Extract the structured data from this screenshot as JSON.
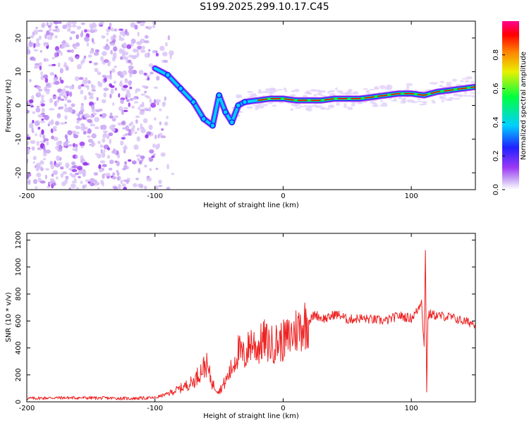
{
  "title": "S199.2025.299.10.17.C45",
  "chart_data": [
    {
      "type": "heatmap",
      "xlabel": "Height of straight line (km)",
      "ylabel": "Frequency (Hz)",
      "xlim": [
        -200,
        150
      ],
      "ylim": [
        -25,
        25
      ],
      "x_ticks": [
        -200,
        -100,
        0,
        100
      ],
      "x_tick_labels": [
        "-200",
        "-100",
        "0",
        "100"
      ],
      "y_ticks": [
        -20,
        -10,
        0,
        10,
        20
      ],
      "y_tick_labels": [
        "-20",
        "-10",
        "0",
        "10",
        "20"
      ],
      "ridge": {
        "x": [
          -100,
          -90,
          -80,
          -70,
          -62,
          -55,
          -50,
          -45,
          -40,
          -35,
          -30,
          -20,
          -10,
          0,
          10,
          20,
          30,
          40,
          50,
          60,
          70,
          80,
          90,
          100,
          110,
          120,
          130,
          140,
          150
        ],
        "y": [
          11,
          9,
          5,
          1,
          -4,
          -6,
          3,
          -2,
          -5,
          0,
          1,
          1.5,
          2,
          2,
          1.5,
          1.5,
          1.5,
          2,
          2,
          2,
          2.5,
          3,
          3.5,
          3.5,
          3,
          4,
          4.5,
          5,
          5.5
        ]
      },
      "colorbar": {
        "label": "Normalized spectral amplitude",
        "range": [
          0,
          1
        ],
        "ticks": [
          0.0,
          0.2,
          0.4,
          0.6,
          0.8
        ],
        "tick_labels": [
          "0.0",
          "0.2",
          "0.4",
          "0.6",
          "0.8"
        ],
        "colors": [
          "#ffffff",
          "#9e3af5",
          "#2020ff",
          "#00d0ff",
          "#00ff40",
          "#e8f000",
          "#ff8000",
          "#ff0000",
          "#ff0090"
        ]
      }
    },
    {
      "type": "line",
      "xlabel": "Height of straight line (km)",
      "ylabel": "SNR (10 * v/v)",
      "xlim": [
        -200,
        150
      ],
      "ylim": [
        0,
        1250
      ],
      "x_ticks": [
        -200,
        -100,
        0,
        100
      ],
      "x_tick_labels": [
        "-200",
        "-100",
        "0",
        "100"
      ],
      "y_ticks": [
        0,
        200,
        400,
        600,
        800,
        1000,
        1200
      ],
      "y_tick_labels": [
        "0",
        "200",
        "400",
        "600",
        "800",
        "1000",
        "1200"
      ],
      "line_color": "#ee2222",
      "series": [
        {
          "name": "SNR",
          "x": [
            -200,
            -180,
            -160,
            -140,
            -120,
            -100,
            -90,
            -80,
            -70,
            -65,
            -60,
            -55,
            -50,
            -45,
            -40,
            -35,
            -30,
            -25,
            -20,
            -15,
            -10,
            -5,
            0,
            5,
            10,
            15,
            20,
            25,
            30,
            35,
            40,
            45,
            50,
            60,
            70,
            80,
            90,
            100,
            105,
            108,
            110,
            111,
            112,
            113,
            115,
            120,
            130,
            140,
            150
          ],
          "y": [
            25,
            30,
            30,
            28,
            25,
            30,
            60,
            100,
            150,
            220,
            280,
            130,
            80,
            150,
            250,
            380,
            330,
            450,
            400,
            460,
            420,
            440,
            450,
            480,
            530,
            570,
            600,
            650,
            620,
            620,
            650,
            640,
            610,
            620,
            610,
            600,
            640,
            620,
            680,
            760,
            400,
            1150,
            90,
            640,
            650,
            640,
            630,
            600,
            580
          ]
        }
      ]
    }
  ]
}
